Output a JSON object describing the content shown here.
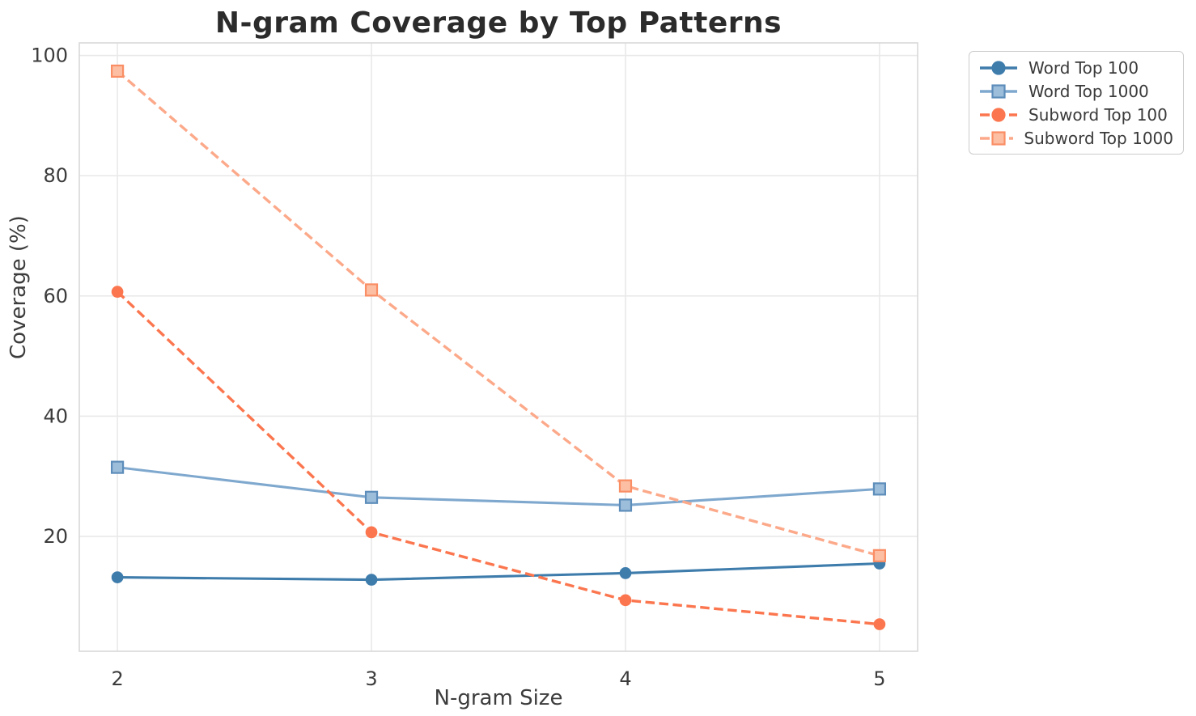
{
  "chart_data": {
    "type": "line",
    "title": "N-gram Coverage by Top Patterns",
    "xlabel": "N-gram Size",
    "ylabel": "Coverage (%)",
    "x": [
      2,
      3,
      4,
      5
    ],
    "x_ticks": [
      "2",
      "3",
      "4",
      "5"
    ],
    "y_ticks": [
      "20",
      "40",
      "60",
      "80",
      "100"
    ],
    "y_tick_values": [
      20,
      40,
      60,
      80,
      100
    ],
    "xlim": [
      1.85,
      5.15
    ],
    "ylim": [
      0.9,
      102.1
    ],
    "grid": true,
    "legend_position": "outside-top-right",
    "series": [
      {
        "name": "Word Top 100",
        "values": [
          13.2,
          12.8,
          13.9,
          15.5
        ],
        "color": "#3E7CAC",
        "line_style": "solid",
        "marker": "circle",
        "marker_fill": "#3E7CAC",
        "marker_edge": "#3E7CAC"
      },
      {
        "name": "Word Top 1000",
        "values": [
          31.5,
          26.5,
          25.2,
          27.9
        ],
        "color": "#7FA8CE",
        "line_style": "solid",
        "marker": "square",
        "marker_fill": "#9DBEDB",
        "marker_edge": "#5D8DBA"
      },
      {
        "name": "Subword Top 100",
        "values": [
          60.7,
          20.7,
          9.4,
          5.4
        ],
        "color": "#FB764E",
        "line_style": "dashed",
        "marker": "circle",
        "marker_fill": "#FB764E",
        "marker_edge": "#FB764E"
      },
      {
        "name": "Subword Top 1000",
        "values": [
          97.4,
          61.0,
          28.4,
          16.8
        ],
        "color": "#FCA98A",
        "line_style": "dashed",
        "marker": "square",
        "marker_fill": "#FCBFA3",
        "marker_edge": "#FA8E64"
      }
    ],
    "colors": {
      "background": "#ffffff",
      "grid": "#e9e9e9",
      "spine": "#d9d9d9",
      "title_text": "#2b2b2b",
      "tick_text": "#3c3c3c",
      "legend_border": "#cccccc",
      "legend_text": "#3a3a3a"
    }
  }
}
